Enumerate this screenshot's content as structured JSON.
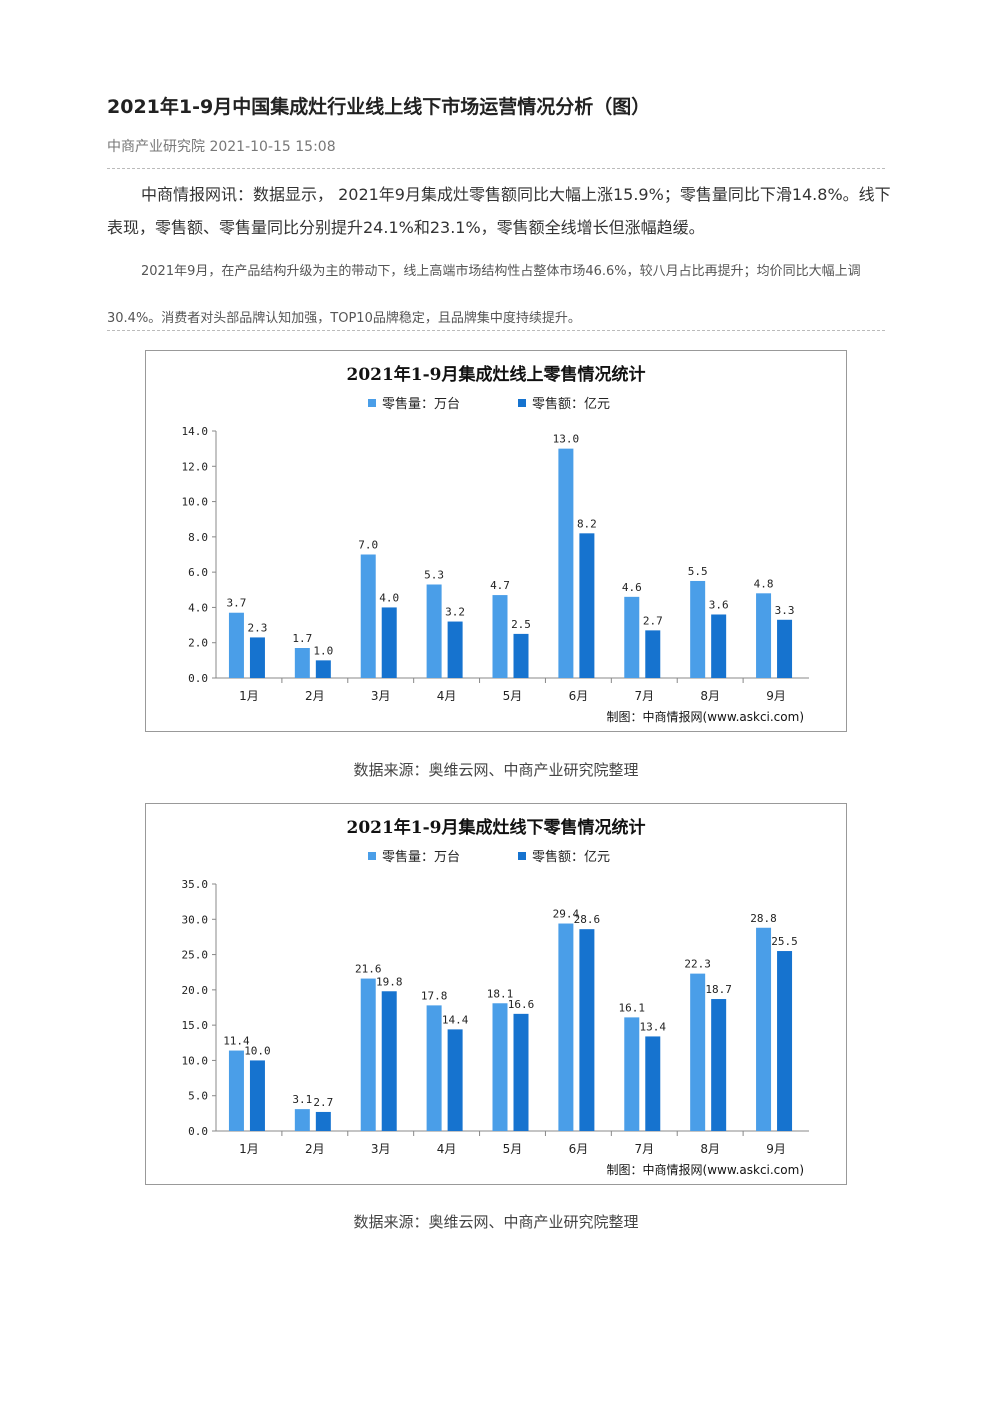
{
  "article": {
    "title": "2021年1-9月中国集成灶行业线上线下市场运营情况分析（图）",
    "meta": "中商产业研究院 2021-10-15 15:08",
    "lead": "中商情报网讯：数据显示， 2021年9月集成灶零售额同比大幅上涨15.9%；零售量同比下滑14.8%。线下表现，零售额、零售量同比分别提升24.1%和23.1%，零售额全线增长但涨幅趋缓。",
    "sub": "2021年9月，在产品结构升级为主的带动下，线上高端市场结构性占整体市场46.6%，较八月占比再提升；均价同比大幅上调30.4%。消费者对头部品牌认知加强，TOP10品牌稳定，且品牌集中度持续提升。"
  },
  "chart_data": [
    {
      "type": "bar",
      "title": "2021年1-9月集成灶线上零售情况统计",
      "categories": [
        "1月",
        "2月",
        "3月",
        "4月",
        "5月",
        "6月",
        "7月",
        "8月",
        "9月"
      ],
      "series": [
        {
          "name": "零售量：万台",
          "values": [
            3.7,
            1.7,
            7.0,
            5.3,
            4.7,
            13.0,
            4.6,
            5.5,
            4.8
          ],
          "labels": [
            "3.7",
            "1.7",
            "7.0",
            "5.3",
            "4.7",
            "13.0",
            "4.6",
            "5.5",
            "4.8"
          ],
          "color": "#4a9ee8"
        },
        {
          "name": "零售额：亿元",
          "values": [
            2.3,
            1.0,
            4.0,
            3.2,
            2.5,
            8.2,
            2.7,
            3.6,
            3.3
          ],
          "labels": [
            "2.3",
            "1.0",
            "4.0",
            "3.2",
            "2.5",
            "8.2",
            "2.7",
            "3.6",
            "3.3"
          ],
          "color": "#1673cf"
        }
      ],
      "yticks": [
        "0.0",
        "2.0",
        "4.0",
        "6.0",
        "8.0",
        "10.0",
        "12.0",
        "14.0"
      ],
      "ylim": [
        0,
        14
      ],
      "ystep": 2,
      "credit": "制图：中商情报网(www.askci.com)",
      "source": "数据来源：奥维云网、中商产业研究院整理"
    },
    {
      "type": "bar",
      "title": "2021年1-9月集成灶线下零售情况统计",
      "categories": [
        "1月",
        "2月",
        "3月",
        "4月",
        "5月",
        "6月",
        "7月",
        "8月",
        "9月"
      ],
      "series": [
        {
          "name": "零售量：万台",
          "values": [
            11.4,
            3.1,
            21.6,
            17.8,
            18.1,
            29.4,
            16.1,
            22.3,
            28.8
          ],
          "labels": [
            "11.4",
            "3.1",
            "21.6",
            "17.8",
            "18.1",
            "29.4",
            "16.1",
            "22.3",
            "28.8"
          ],
          "color": "#4a9ee8"
        },
        {
          "name": "零售额：亿元",
          "values": [
            10.0,
            2.7,
            19.8,
            14.4,
            16.6,
            28.6,
            13.4,
            18.7,
            25.5
          ],
          "labels": [
            "10.0",
            "2.7",
            "19.8",
            "14.4",
            "16.6",
            "28.6",
            "13.4",
            "18.7",
            "25.5"
          ],
          "color": "#1673cf"
        }
      ],
      "yticks": [
        "0.0",
        "5.0",
        "10.0",
        "15.0",
        "20.0",
        "25.0",
        "30.0",
        "35.0"
      ],
      "ylim": [
        0,
        35
      ],
      "ystep": 5,
      "credit": "制图：中商情报网(www.askci.com)",
      "source": "数据来源：奥维云网、中商产业研究院整理"
    }
  ]
}
